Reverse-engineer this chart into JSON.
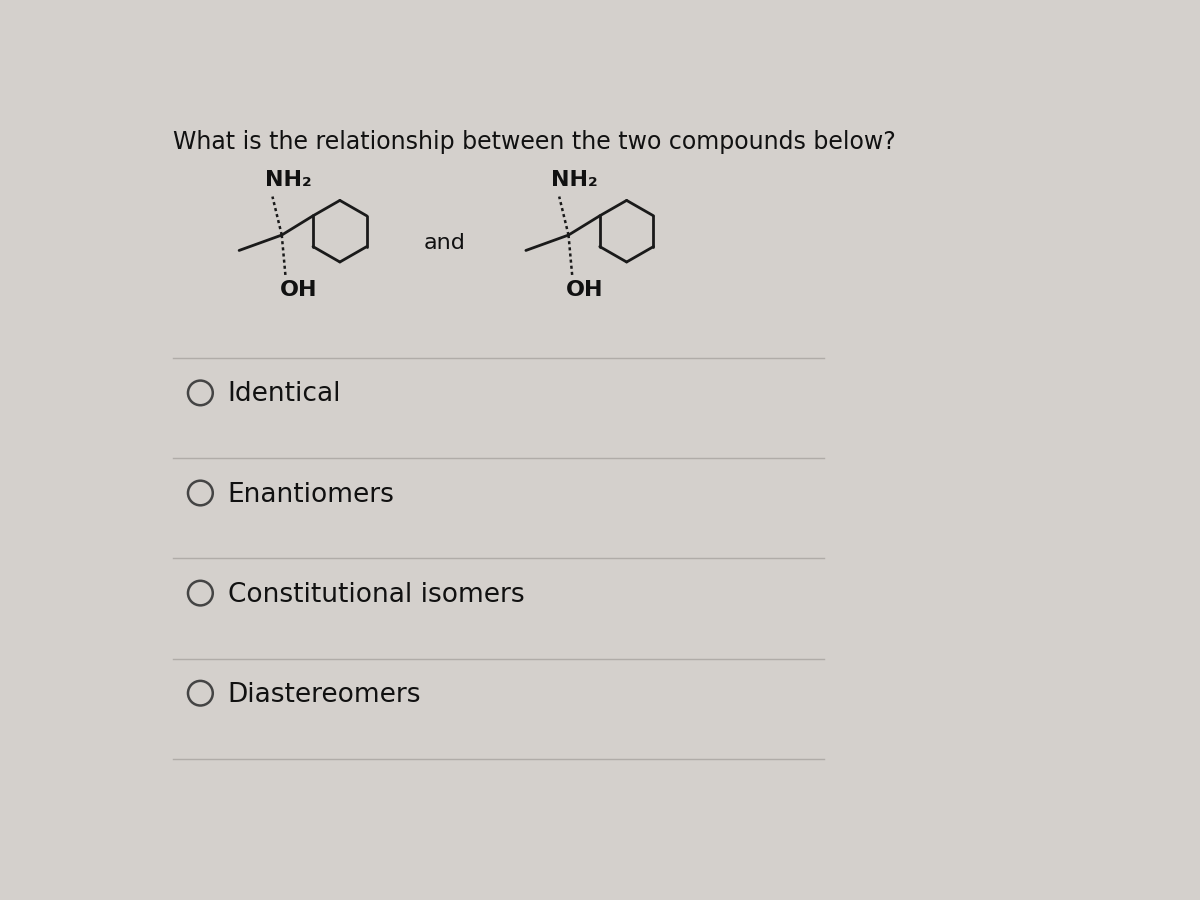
{
  "title": "What is the relationship between the two compounds below?",
  "title_fontsize": 17,
  "bg_color": "#d4d0cc",
  "text_color": "#111111",
  "bond_color": "#1a1a1a",
  "options": [
    "Identical",
    "Enantiomers",
    "Constitutional isomers",
    "Diastereomers"
  ],
  "option_fontsize": 19,
  "line_color": "#b0aca8",
  "and_fontsize": 16,
  "nh2_label": "NH₂",
  "oh_label": "OH",
  "label_fontsize": 14
}
